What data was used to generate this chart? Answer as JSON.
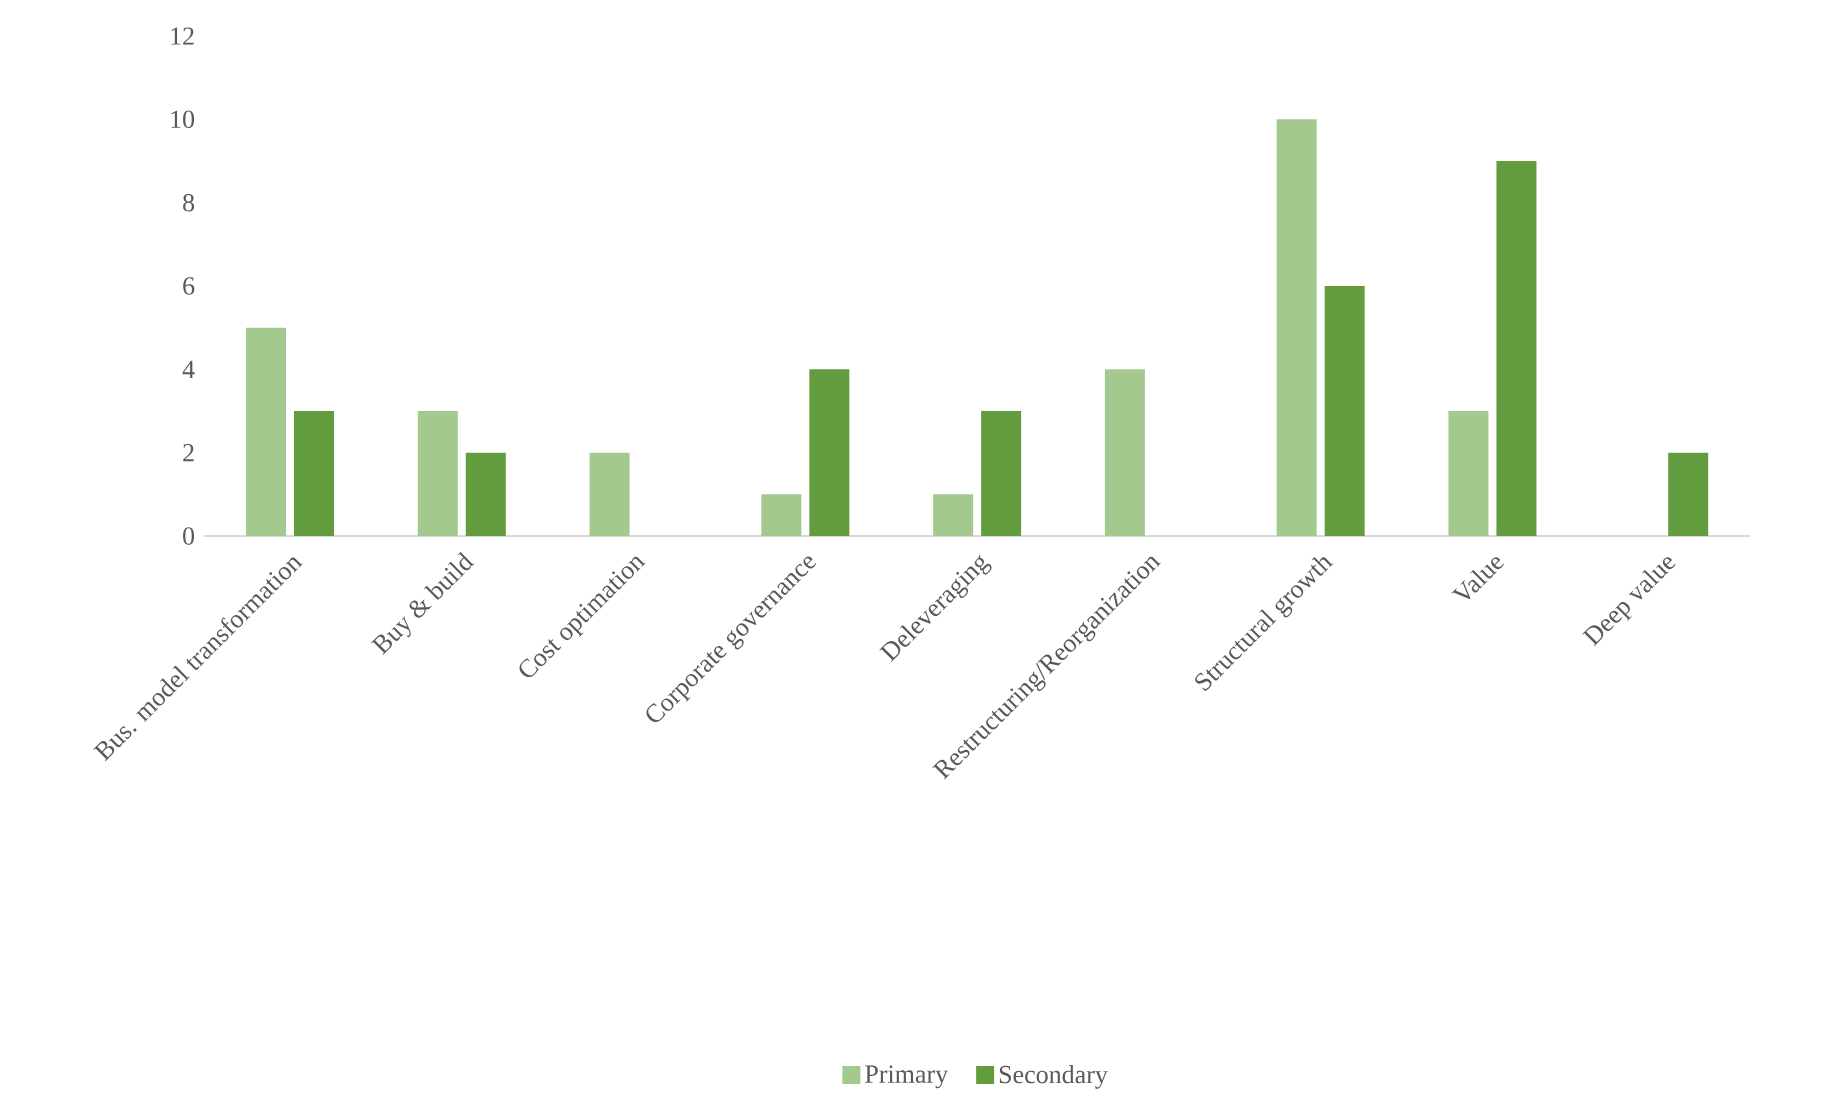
{
  "chart_data": {
    "type": "bar",
    "categories": [
      "Bus. model transformation",
      "Buy & build",
      "Cost optimation",
      "Corporate governance",
      "Deleveraging",
      "Restructuring/Reorganization",
      "Structural growth",
      "Value",
      "Deep value"
    ],
    "series": [
      {
        "name": "Primary",
        "color": "#a3c98e",
        "values": [
          5,
          3,
          2,
          1,
          1,
          4,
          10,
          3,
          0
        ]
      },
      {
        "name": "Secondary",
        "color": "#629c3e",
        "values": [
          3,
          2,
          0,
          4,
          3,
          0,
          6,
          9,
          2
        ]
      }
    ],
    "ylim": [
      0,
      12
    ],
    "yticks": [
      0,
      2,
      4,
      6,
      8,
      10,
      12
    ],
    "grid": false,
    "legend": "bottom"
  }
}
